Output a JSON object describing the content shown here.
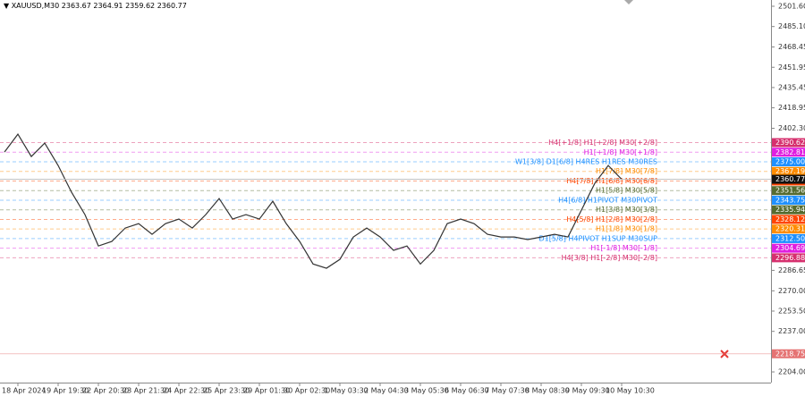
{
  "chart_data": {
    "type": "line",
    "title": "XAUUSD,M30",
    "ohlc": [
      2363.67,
      2364.91,
      2359.62,
      2360.77
    ],
    "categories": [
      null,
      "18 Apr 2024",
      null,
      null,
      "19 Apr 19:30",
      null,
      null,
      "22 Apr 20:30",
      null,
      null,
      "23 Apr 21:30",
      null,
      null,
      "24 Apr 22:30",
      null,
      null,
      "25 Apr 23:30",
      null,
      null,
      "29 Apr 01:30",
      null,
      null,
      "30 Apr 02:30",
      null,
      null,
      "1 May 03:30",
      null,
      null,
      "2 May 04:30",
      null,
      null,
      "3 May 05:30",
      null,
      null,
      "6 May 06:30",
      null,
      null,
      "7 May 07:30",
      null,
      null,
      "8 May 08:30",
      null,
      null,
      "9 May 09:30",
      null,
      null,
      "10 May 10:30"
    ],
    "series": [
      {
        "color": "#333333",
        "values": [
          2382.9,
          2397.5,
          2379.3,
          2390.2,
          2372.0,
          2350.2,
          2332.0,
          2306.5,
          2310.2,
          2321.1,
          2324.7,
          2316.0,
          2324.7,
          2328.4,
          2321.1,
          2332.0,
          2345.1,
          2328.4,
          2332.0,
          2328.4,
          2342.9,
          2324.7,
          2310.2,
          2291.8,
          2288.4,
          2295.6,
          2313.8,
          2321.1,
          2313.8,
          2302.9,
          2306.5,
          2291.8,
          2302.9,
          2324.7,
          2328.4,
          2324.7,
          2316.0,
          2313.8,
          2313.8,
          2311.7,
          2313.8,
          2316.0,
          2313.8,
          2335.6,
          2357.5,
          2372.0,
          2360.8
        ]
      }
    ],
    "ylim": [
      2195.3,
      2506.7
    ],
    "yticks": [
      {
        "value": 2501.6,
        "label": "2501.60"
      },
      {
        "value": 2485.1,
        "label": "2485.10"
      },
      {
        "value": 2468.45,
        "label": "2468.45"
      },
      {
        "value": 2451.95,
        "label": "2451.95"
      },
      {
        "value": 2435.45,
        "label": "2435.45"
      },
      {
        "value": 2418.95,
        "label": "2418.95"
      },
      {
        "value": 2402.3,
        "label": "2402.30"
      },
      {
        "value": 2286.65,
        "label": "2286.65"
      },
      {
        "value": 2270,
        "label": "2270.00"
      },
      {
        "value": 2253.5,
        "label": "2253.50"
      },
      {
        "value": 2237,
        "label": "2237.00"
      },
      {
        "value": 2204,
        "label": "2204.00"
      }
    ],
    "levels": [
      {
        "name": "H4[+1/8] H1[+2/8] M30[+2/8]",
        "value": 2390.62,
        "color": "#d6306e"
      },
      {
        "name": "H1[+1/8] M30[+1/8]",
        "value": 2382.81,
        "color": "#e01ee0"
      },
      {
        "name": "W1[3/8] D1[6/8] H4RES H1RES M30RES",
        "value": 2375,
        "value_label": "2375.00",
        "color": "#1e90ff"
      },
      {
        "name": "H1[7/8] M30[7/8]",
        "value": 2367.19,
        "color": "#ff8c00"
      },
      {
        "name": "H4[7/8] H1[6/8] M30[6/8]",
        "value": 2359.38,
        "color": "#ff4500"
      },
      {
        "name": "H1[5/8] M30[5/8]",
        "value": 2351.56,
        "color": "#556b2f"
      },
      {
        "name": "H4[6/8] H1PIVOT M30PIVOT",
        "value": 2343.75,
        "color": "#1e90ff"
      },
      {
        "name": "H1[3/8] M30[3/8]",
        "value": 2335.94,
        "color": "#556b2f"
      },
      {
        "name": "H4[5/8] H1[2/8] M30[2/8]",
        "value": 2328.12,
        "color": "#ff4500"
      },
      {
        "name": "H1[1/8] M30[1/8]",
        "value": 2320.31,
        "color": "#ff8c00"
      },
      {
        "name": "D1[5/8] H4PIVOT H1SUP M30SUP",
        "value": 2312.5,
        "value_label": "2312.50",
        "color": "#1e90ff"
      },
      {
        "name": "H1[-1/8] M30[-1/8]",
        "value": 2304.69,
        "color": "#e01ee0"
      },
      {
        "name": "H4[3/8] H1[-2/8] M30[-2/8]",
        "value": 2296.88,
        "color": "#d6306e"
      },
      {
        "value": 2218.75,
        "color": "#e57373"
      }
    ]
  }
}
